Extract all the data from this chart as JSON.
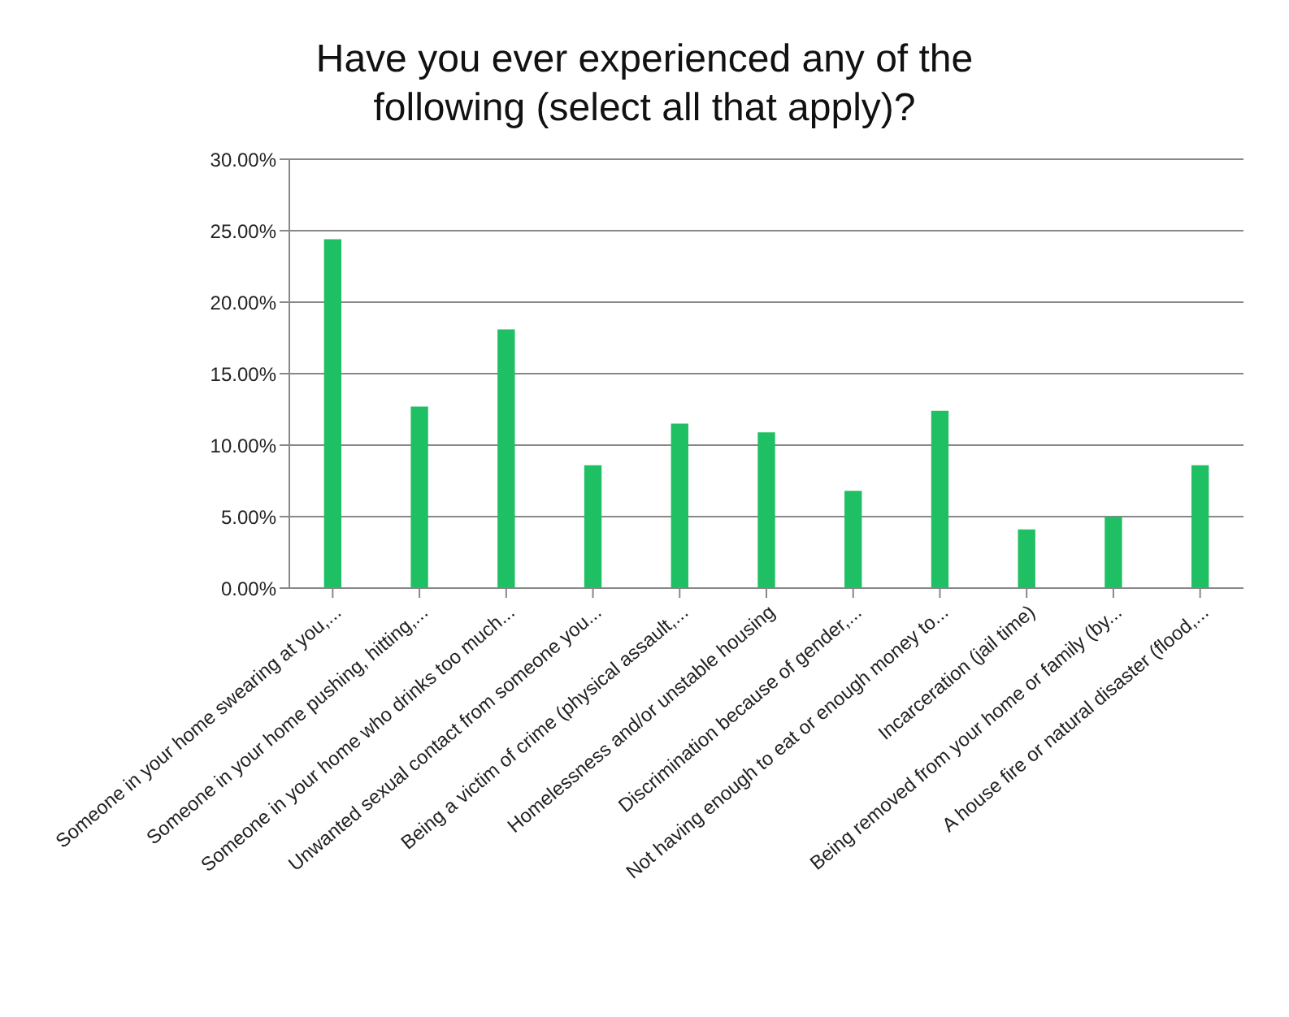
{
  "chart_data": {
    "type": "bar",
    "title": "Have you ever experienced any of the following (select all that apply)?",
    "categories": [
      "Someone in your home swearing at you,...",
      "Someone in your home pushing, hitting,...",
      "Someone in your home who drinks too much...",
      "Unwanted sexual contact from someone you...",
      "Being a victim of crime (physical assault,...",
      "Homelessness and/or unstable housing",
      "Discrimination because of gender,...",
      "Not having enough to eat or enough money to...",
      "Incarceration (jail time)",
      "Being removed from your home or family (by...",
      "A house fire or natural disaster (flood,..."
    ],
    "values": [
      24.4,
      12.7,
      18.1,
      8.6,
      11.5,
      10.9,
      6.8,
      12.4,
      4.1,
      5.0,
      8.6
    ],
    "color": "#1fbf63",
    "ylim": [
      0,
      30
    ],
    "yticks": [
      {
        "value": 0,
        "label": "0.00%"
      },
      {
        "value": 5,
        "label": "5.00%"
      },
      {
        "value": 10,
        "label": "10.00%"
      },
      {
        "value": 15,
        "label": "15.00%"
      },
      {
        "value": 20,
        "label": "20.00%"
      },
      {
        "value": 25,
        "label": "25.00%"
      },
      {
        "value": 30,
        "label": "30.00%"
      }
    ],
    "grid": "y"
  }
}
